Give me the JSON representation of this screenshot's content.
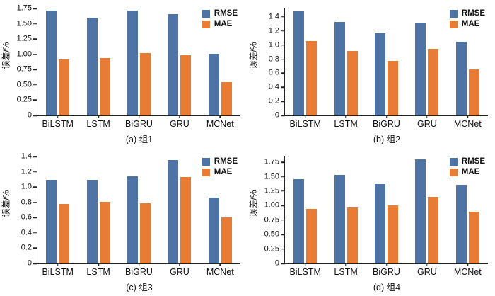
{
  "colors": {
    "rmse": "#4d74a5",
    "mae": "#e87c34"
  },
  "chart_data": [
    {
      "type": "bar",
      "caption": "(a) 组1",
      "ylabel": "误差/%",
      "categories": [
        "BiLSTM",
        "LSTM",
        "BiGRU",
        "GRU",
        "MCNet"
      ],
      "series": [
        {
          "name": "RMSE",
          "values": [
            1.71,
            1.6,
            1.72,
            1.66,
            1.01
          ]
        },
        {
          "name": "MAE",
          "values": [
            0.91,
            0.94,
            1.02,
            0.98,
            0.55
          ]
        }
      ],
      "ylim": [
        0,
        1.75
      ],
      "tick_values": [
        0,
        0.25,
        0.5,
        0.75,
        1.0,
        1.25,
        1.5,
        1.75
      ],
      "tick_labels": [
        "0",
        "0.25",
        "0.50",
        "0.75",
        "1.00",
        "1.25",
        "1.50",
        "1.75"
      ],
      "legend": [
        "RMSE",
        "MAE"
      ],
      "legend_position": "top-right",
      "grid": false
    },
    {
      "type": "bar",
      "caption": "(b) 组2",
      "ylabel": "误差/%",
      "categories": [
        "BiLSTM",
        "LSTM",
        "BiGRU",
        "GRU",
        "MCNet"
      ],
      "series": [
        {
          "name": "RMSE",
          "values": [
            1.48,
            1.33,
            1.17,
            1.32,
            1.05
          ]
        },
        {
          "name": "MAE",
          "values": [
            1.06,
            0.92,
            0.78,
            0.95,
            0.65
          ]
        }
      ],
      "ylim": [
        0,
        1.52
      ],
      "tick_values": [
        0,
        0.2,
        0.4,
        0.6,
        0.8,
        1.0,
        1.2,
        1.4
      ],
      "tick_labels": [
        "0",
        "0.2",
        "0.4",
        "0.6",
        "0.8",
        "1.0",
        "1.2",
        "1.4"
      ],
      "legend": [
        "RMSE",
        "MAE"
      ],
      "legend_position": "top-right",
      "grid": false
    },
    {
      "type": "bar",
      "caption": "(c) 组3",
      "ylabel": "误差/%",
      "categories": [
        "BiLSTM",
        "LSTM",
        "BiGRU",
        "GRU",
        "MCNet"
      ],
      "series": [
        {
          "name": "RMSE",
          "values": [
            1.09,
            1.09,
            1.14,
            1.35,
            0.86
          ]
        },
        {
          "name": "MAE",
          "values": [
            0.78,
            0.81,
            0.79,
            1.13,
            0.6
          ]
        }
      ],
      "ylim": [
        0,
        1.4
      ],
      "tick_values": [
        0,
        0.2,
        0.4,
        0.6,
        0.8,
        1.0,
        1.2,
        1.4
      ],
      "tick_labels": [
        "0",
        "0.2",
        "0.4",
        "0.6",
        "0.8",
        "1.0",
        "1.2",
        "1.4"
      ],
      "legend": [
        "RMSE",
        "MAE"
      ],
      "legend_position": "top-right",
      "grid": false
    },
    {
      "type": "bar",
      "caption": "(d) 组4",
      "ylabel": "误差/%",
      "categories": [
        "BiLSTM",
        "LSTM",
        "BiGRU",
        "GRU",
        "MCNet"
      ],
      "series": [
        {
          "name": "RMSE",
          "values": [
            1.46,
            1.53,
            1.37,
            1.8,
            1.36
          ]
        },
        {
          "name": "MAE",
          "values": [
            0.94,
            0.97,
            1.01,
            1.15,
            0.89
          ]
        }
      ],
      "ylim": [
        0,
        1.85
      ],
      "tick_values": [
        0,
        0.25,
        0.5,
        0.75,
        1.0,
        1.25,
        1.5,
        1.75
      ],
      "tick_labels": [
        "0",
        "0.25",
        "0.50",
        "0.75",
        "1.00",
        "1.25",
        "1.50",
        "1.75"
      ],
      "legend": [
        "RMSE",
        "MAE"
      ],
      "legend_position": "top-right",
      "grid": false
    }
  ]
}
